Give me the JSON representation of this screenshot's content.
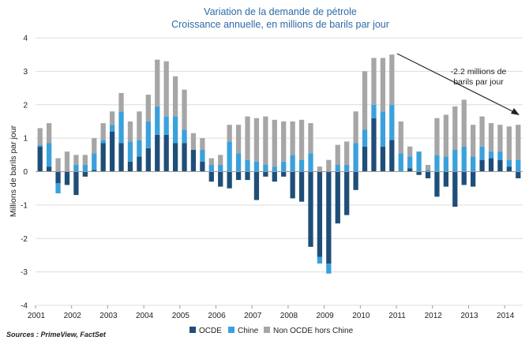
{
  "chart_data": {
    "type": "bar",
    "stacked": true,
    "title": "Variation de la demande de pétrole",
    "subtitle": "Croissance annuelle, en millions de barils par jour",
    "ylabel": "Millions de barils par jour",
    "xlabel": "",
    "ylim": [
      -4,
      4
    ],
    "yticks": [
      "4",
      "3",
      "2",
      "1",
      "0",
      "-1",
      "-2",
      "-3",
      "-4"
    ],
    "xticks": [
      "2001",
      "2002",
      "2003",
      "2004",
      "2005",
      "2006",
      "2007",
      "2008",
      "2009",
      "2010",
      "2011",
      "2012",
      "2013",
      "2014"
    ],
    "categories": [
      "2001T1",
      "2001T2",
      "2001T3",
      "2001T4",
      "2002T1",
      "2002T2",
      "2002T3",
      "2002T4",
      "2003T1",
      "2003T2",
      "2003T3",
      "2003T4",
      "2004T1",
      "2004T2",
      "2004T3",
      "2004T4",
      "2005T1",
      "2005T2",
      "2005T3",
      "2005T4",
      "2006T1",
      "2006T2",
      "2006T3",
      "2006T4",
      "2007T1",
      "2007T2",
      "2007T3",
      "2007T4",
      "2008T1",
      "2008T2",
      "2008T3",
      "2008T4",
      "2009T1",
      "2009T2",
      "2009T3",
      "2009T4",
      "2010T1",
      "2010T2",
      "2010T3",
      "2010T4",
      "2011T1",
      "2011T2",
      "2011T3",
      "2011T4",
      "2012T1",
      "2012T2",
      "2012T3",
      "2012T4",
      "2013T1",
      "2013T2",
      "2013T3",
      "2013T4",
      "2014T1",
      "2014T2"
    ],
    "series": [
      {
        "name": "OCDE",
        "color": "#1f4e79",
        "values": [
          0.75,
          0.15,
          -0.35,
          -0.4,
          -0.7,
          -0.15,
          0.05,
          0.85,
          1.2,
          0.85,
          0.3,
          0.45,
          0.7,
          1.1,
          1.1,
          0.85,
          0.85,
          0.65,
          0.3,
          -0.3,
          -0.45,
          -0.5,
          -0.25,
          -0.25,
          -0.85,
          -0.15,
          -0.3,
          -0.15,
          -0.8,
          -0.9,
          -2.25,
          -2.55,
          -2.75,
          -1.55,
          -1.3,
          -0.55,
          0.75,
          1.6,
          0.75,
          0.95,
          0.0,
          0.1,
          -0.1,
          -0.2,
          -0.75,
          -0.45,
          -1.05,
          -0.4,
          -0.45,
          0.35,
          0.4,
          0.35,
          0.15,
          -0.2
        ]
      },
      {
        "name": "Chine",
        "color": "#3aa1dc",
        "values": [
          0.05,
          0.7,
          -0.3,
          0.0,
          0.2,
          0.2,
          0.5,
          0.1,
          0.2,
          0.95,
          0.6,
          0.5,
          0.8,
          0.85,
          0.55,
          0.8,
          0.4,
          0.0,
          0.35,
          0.2,
          0.2,
          0.9,
          0.55,
          0.35,
          0.3,
          0.2,
          0.15,
          0.3,
          0.5,
          0.35,
          0.55,
          -0.2,
          -0.3,
          0.2,
          0.2,
          0.85,
          0.5,
          0.4,
          1.05,
          1.05,
          0.55,
          0.35,
          0.6,
          0.05,
          0.5,
          0.45,
          0.65,
          0.75,
          0.45,
          0.4,
          0.2,
          0.25,
          0.2,
          0.35
        ]
      },
      {
        "name": "Non OCDE hors Chine",
        "color": "#a6a6a6",
        "values": [
          0.5,
          0.6,
          0.4,
          0.6,
          0.3,
          0.3,
          0.45,
          0.5,
          0.4,
          0.55,
          0.6,
          0.85,
          0.8,
          1.4,
          1.65,
          1.2,
          1.2,
          0.5,
          0.35,
          0.2,
          0.3,
          0.5,
          0.85,
          1.3,
          1.3,
          1.45,
          1.4,
          1.2,
          1.0,
          1.2,
          0.9,
          0.15,
          0.35,
          0.6,
          0.7,
          0.95,
          1.75,
          1.4,
          1.6,
          1.5,
          0.95,
          0.3,
          0.0,
          0.15,
          1.1,
          1.25,
          1.3,
          1.4,
          0.95,
          0.9,
          0.85,
          0.8,
          1.0,
          1.05
        ]
      }
    ],
    "annotation": "-2.2 millions de barils par jour",
    "grid": true,
    "legend_position": "bottom"
  },
  "annotation_lines": [
    "-2.2 millions de",
    "barils par jour"
  ],
  "source": "Sources : PrimeView, FactSet"
}
